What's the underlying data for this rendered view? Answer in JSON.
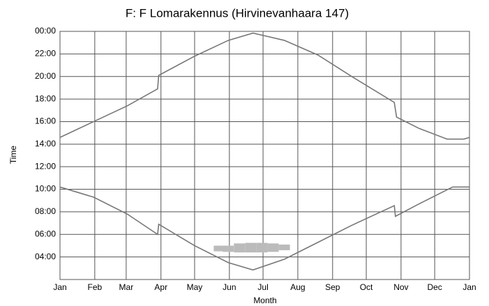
{
  "chart_data": {
    "type": "line",
    "title": "F: F Lomarakennus (Hirvinevanhaara 147)",
    "x_label": "Month",
    "y_label": "Time",
    "xlim": [
      0,
      365
    ],
    "ylim": [
      2,
      24
    ],
    "xticks": [
      {
        "value": 0,
        "label": "Jan"
      },
      {
        "value": 31,
        "label": "Feb"
      },
      {
        "value": 59,
        "label": "Mar"
      },
      {
        "value": 90,
        "label": "Apr"
      },
      {
        "value": 120,
        "label": "May"
      },
      {
        "value": 151,
        "label": "Jun"
      },
      {
        "value": 181,
        "label": "Jul"
      },
      {
        "value": 212,
        "label": "Aug"
      },
      {
        "value": 243,
        "label": "Sep"
      },
      {
        "value": 273,
        "label": "Oct"
      },
      {
        "value": 304,
        "label": "Nov"
      },
      {
        "value": 334,
        "label": "Dec"
      },
      {
        "value": 365,
        "label": "Jan"
      }
    ],
    "yticks": [
      {
        "value": 24,
        "label": "00:00"
      },
      {
        "value": 22,
        "label": "22:00"
      },
      {
        "value": 20,
        "label": "20:00"
      },
      {
        "value": 18,
        "label": "18:00"
      },
      {
        "value": 16,
        "label": "16:00"
      },
      {
        "value": 14,
        "label": "14:00"
      },
      {
        "value": 12,
        "label": "12:00"
      },
      {
        "value": 10,
        "label": "10:00"
      },
      {
        "value": 8,
        "label": "08:00"
      },
      {
        "value": 6,
        "label": "06:00"
      },
      {
        "value": 4,
        "label": "04:00"
      }
    ],
    "grid": true,
    "series": [
      {
        "color": "#777777",
        "x": [
          0,
          30,
          60,
          87,
          88,
          120,
          150,
          172,
          200,
          230,
          260,
          298,
          300,
          320,
          345,
          360,
          365
        ],
        "values": [
          14.6,
          16.0,
          17.4,
          18.9,
          20.1,
          21.8,
          23.2,
          23.85,
          23.2,
          21.9,
          20.0,
          17.7,
          16.4,
          15.4,
          14.45,
          14.45,
          14.6
        ]
      },
      {
        "color": "#777777",
        "x": [
          0,
          30,
          60,
          87,
          88,
          120,
          150,
          172,
          200,
          230,
          260,
          298,
          299,
          320,
          350,
          365
        ],
        "values": [
          10.2,
          9.3,
          7.8,
          6.0,
          6.9,
          5.0,
          3.5,
          2.85,
          3.8,
          5.3,
          6.8,
          8.55,
          7.6,
          8.7,
          10.2,
          10.2
        ]
      }
    ],
    "band": {
      "color": "#bbbbbb",
      "x": [
        142,
        150,
        160,
        170,
        180,
        190,
        200
      ],
      "low": [
        4.5,
        4.45,
        4.4,
        4.4,
        4.4,
        4.45,
        4.6
      ],
      "high": [
        5.0,
        5.0,
        5.2,
        5.25,
        5.25,
        5.2,
        5.1
      ]
    }
  }
}
